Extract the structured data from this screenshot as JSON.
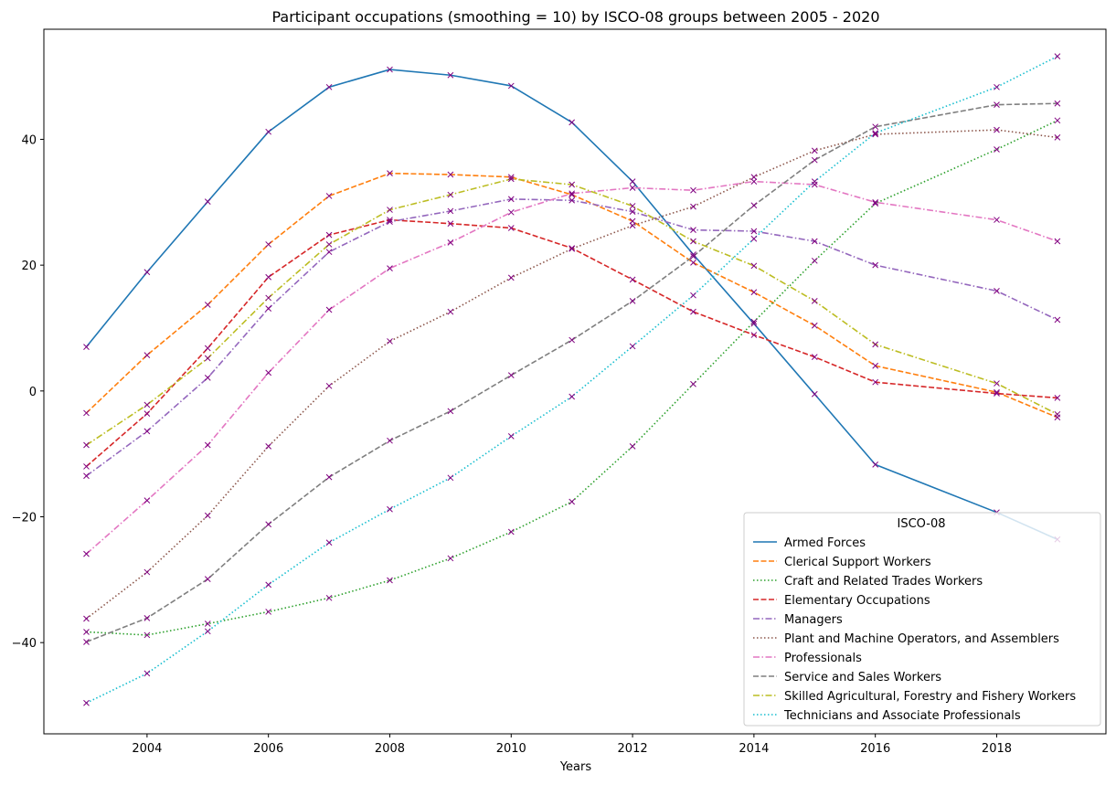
{
  "chart_data": {
    "type": "line",
    "title": "Participant occupations (smoothing = 10) by ISCO-08 groups between 2005 - 2020",
    "xlabel": "Years",
    "ylabel": "",
    "xlim": [
      2002.3,
      2019.8
    ],
    "ylim": [
      -54.5,
      57.5
    ],
    "xticks": [
      2004,
      2006,
      2008,
      2010,
      2012,
      2014,
      2016,
      2018
    ],
    "yticks": [
      -40,
      -20,
      0,
      20,
      40
    ],
    "grid": false,
    "legend": {
      "title": "ISCO-08",
      "placement": "lower right"
    },
    "marker": "x",
    "marker_color": "#800080",
    "x": [
      2003,
      2004,
      2005,
      2006,
      2007,
      2008,
      2009,
      2010,
      2011,
      2012,
      2013,
      2014,
      2015,
      2016,
      2018,
      2019
    ],
    "series": [
      {
        "name": "Armed Forces",
        "color": "#1f77b4",
        "dash": "solid",
        "values": [
          7.0,
          18.9,
          30.1,
          41.2,
          48.3,
          51.1,
          50.2,
          48.5,
          42.7,
          33.3,
          21.7,
          10.7,
          -0.5,
          -11.7,
          -19.3,
          -23.6
        ]
      },
      {
        "name": "Clerical Support Workers",
        "color": "#ff7f0e",
        "dash": "dashed",
        "values": [
          -3.5,
          5.7,
          13.7,
          23.3,
          31.0,
          34.6,
          34.4,
          34.0,
          31.2,
          27.0,
          20.4,
          15.7,
          10.4,
          4.0,
          -0.2,
          -4.2
        ]
      },
      {
        "name": "Craft and Related Trades Workers",
        "color": "#2ca02c",
        "dash": "dotted",
        "values": [
          -38.3,
          -38.8,
          -37.0,
          -35.1,
          -32.9,
          -30.1,
          -26.6,
          -22.4,
          -17.6,
          -8.8,
          1.1,
          11.0,
          20.7,
          29.8,
          38.4,
          43.0
        ]
      },
      {
        "name": "Elementary Occupations",
        "color": "#d62728",
        "dash": "dashed",
        "values": [
          -12.0,
          -3.6,
          6.8,
          18.1,
          24.8,
          27.2,
          26.6,
          25.9,
          22.7,
          17.7,
          12.6,
          8.9,
          5.4,
          1.4,
          -0.4,
          -1.1
        ]
      },
      {
        "name": "Managers",
        "color": "#9467bd",
        "dash": "dashdot",
        "values": [
          -13.5,
          -6.4,
          2.1,
          13.1,
          22.1,
          26.9,
          28.6,
          30.5,
          30.3,
          28.5,
          25.6,
          25.4,
          23.8,
          20.0,
          15.9,
          11.3
        ]
      },
      {
        "name": "Plant and Machine Operators, and Assemblers",
        "color": "#8c564b",
        "dash": "dotted",
        "values": [
          -36.2,
          -28.8,
          -19.8,
          -8.8,
          0.8,
          7.9,
          12.6,
          18.0,
          22.6,
          26.3,
          29.3,
          34.0,
          38.2,
          40.8,
          41.5,
          40.3
        ]
      },
      {
        "name": "Professionals",
        "color": "#e377c2",
        "dash": "dashdot",
        "values": [
          -25.9,
          -17.4,
          -8.6,
          2.9,
          12.9,
          19.5,
          23.6,
          28.4,
          31.4,
          32.3,
          31.9,
          33.3,
          32.8,
          30.0,
          27.2,
          23.8
        ]
      },
      {
        "name": "Service and Sales Workers",
        "color": "#7f7f7f",
        "dash": "dashed",
        "values": [
          -39.9,
          -36.1,
          -29.9,
          -21.2,
          -13.7,
          -7.9,
          -3.2,
          2.5,
          8.1,
          14.3,
          21.4,
          29.5,
          36.7,
          42.0,
          45.5,
          45.7
        ]
      },
      {
        "name": "Skilled Agricultural, Forestry and Fishery Workers",
        "color": "#bcbd22",
        "dash": "dashdot",
        "values": [
          -8.6,
          -2.2,
          5.2,
          14.8,
          23.3,
          28.8,
          31.2,
          33.7,
          32.8,
          29.4,
          23.8,
          19.9,
          14.3,
          7.4,
          1.2,
          -3.7
        ]
      },
      {
        "name": "Technicians and Associate Professionals",
        "color": "#17becf",
        "dash": "dotted",
        "values": [
          -49.6,
          -44.9,
          -38.2,
          -30.8,
          -24.1,
          -18.8,
          -13.8,
          -7.2,
          -0.9,
          7.1,
          15.2,
          24.2,
          33.3,
          41.0,
          48.3,
          53.2
        ]
      }
    ]
  }
}
